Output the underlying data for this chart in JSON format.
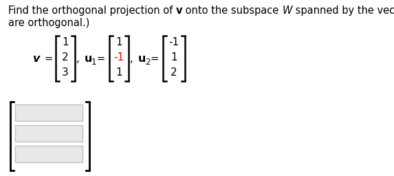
{
  "bg_color": "#FFFFFF",
  "black_color": "#000000",
  "red_color": "#FF0000",
  "gray_color": "#C0C0C0",
  "light_gray": "#E8E8E8",
  "font_size": 10.5,
  "small_font_size": 8.5,
  "matrix_font_size": 11,
  "v_values": [
    "1",
    "2",
    "3"
  ],
  "u1_values": [
    "1",
    "-1",
    "1"
  ],
  "u1_colors": [
    "#000000",
    "#FF0000",
    "#000000"
  ],
  "u2_values": [
    "-1",
    "1",
    "2"
  ],
  "u2_colors": [
    "#000000",
    "#000000",
    "#000000"
  ]
}
